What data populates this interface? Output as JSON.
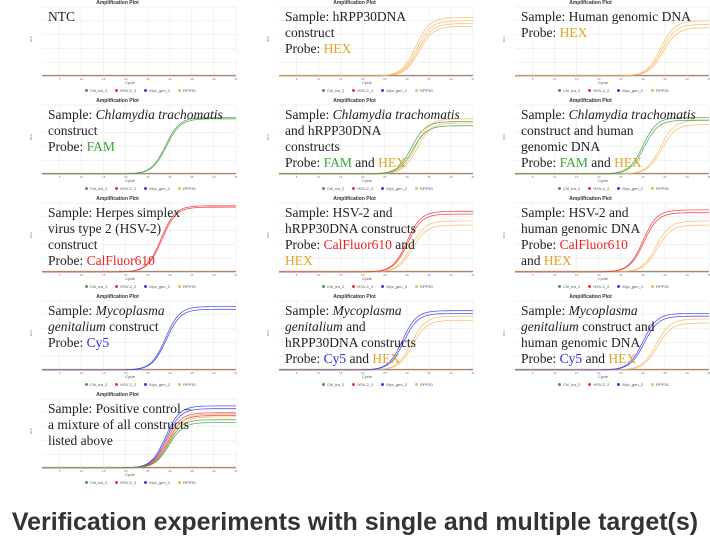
{
  "colors": {
    "FAM": "#3aa43a",
    "HEX": "#e0a424",
    "CalFluor610": "#ee2222",
    "Cy5": "#2a2ae6",
    "green": "#44a044",
    "orange": "#f4b860",
    "red": "#f03434",
    "blue": "#3a3af0"
  },
  "footer": "Verification experiments with single and multiple target(s)",
  "chart_data": [
    {
      "type": "line",
      "title": "Amplification Plot",
      "xlabel": "Cycle",
      "ylabel": "RFU",
      "xlim": [
        1,
        45
      ],
      "ylim": [
        0,
        1
      ],
      "xticks": [
        5,
        10,
        15,
        20,
        25,
        30,
        35,
        40,
        45
      ],
      "legend": [
        "Chl_tra_2",
        "HSV-2_2",
        "Myc_gen_2",
        "RPP30"
      ],
      "legend_colors": [
        "green",
        "red",
        "blue",
        "orange"
      ],
      "label": [
        [
          {
            "t": "NTC"
          }
        ]
      ],
      "curves": []
    },
    {
      "type": "line",
      "title": "Amplification Plot",
      "xlabel": "Cycle",
      "ylabel": "RFU",
      "xlim": [
        1,
        45
      ],
      "ylim": [
        0,
        1
      ],
      "xticks": [
        5,
        10,
        15,
        20,
        25,
        30,
        35,
        40,
        45
      ],
      "legend": [
        "Chl_tra_2",
        "HSV-2_2",
        "Myc_gen_2",
        "RPP30"
      ],
      "legend_colors": [
        "green",
        "red",
        "blue",
        "orange"
      ],
      "label": [
        [
          {
            "t": "Sample: hRPP30DNA"
          }
        ],
        [
          {
            "t": "construct"
          }
        ],
        [
          {
            "t": "Probe: "
          },
          {
            "t": "HEX",
            "c": "HEX"
          }
        ]
      ],
      "curves": [
        {
          "c": "orange",
          "ct": 32,
          "p": 0.85
        },
        {
          "c": "orange",
          "ct": 32.3,
          "p": 0.8
        },
        {
          "c": "orange",
          "ct": 32.6,
          "p": 0.76
        },
        {
          "c": "orange",
          "ct": 32.8,
          "p": 0.72
        }
      ]
    },
    {
      "type": "line",
      "title": "Amplification Plot",
      "xlabel": "Cycle",
      "ylabel": "RFU",
      "xlim": [
        1,
        45
      ],
      "ylim": [
        0,
        1
      ],
      "xticks": [
        5,
        10,
        15,
        20,
        25,
        30,
        35,
        40,
        45
      ],
      "legend": [
        "Chl_tra_2",
        "HSV-2_2",
        "Myc_gen_2",
        "RPP30"
      ],
      "legend_colors": [
        "green",
        "red",
        "blue",
        "orange"
      ],
      "label": [
        [
          {
            "t": "Sample: Human genomic DNA"
          }
        ],
        [
          {
            "t": "Probe: "
          },
          {
            "t": "HEX",
            "c": "HEX"
          }
        ]
      ],
      "curves": [
        {
          "c": "orange",
          "ct": 34,
          "p": 0.8
        },
        {
          "c": "orange",
          "ct": 34.3,
          "p": 0.75
        },
        {
          "c": "orange",
          "ct": 34.6,
          "p": 0.7
        }
      ]
    },
    {
      "type": "line",
      "title": "Amplification Plot",
      "xlabel": "Cycle",
      "ylabel": "RFU",
      "xlim": [
        1,
        45
      ],
      "ylim": [
        0,
        1
      ],
      "xticks": [
        5,
        10,
        15,
        20,
        25,
        30,
        35,
        40,
        45
      ],
      "legend": [
        "Chl_tra_2",
        "HSV-2_2",
        "Myc_gen_2",
        "RPP30"
      ],
      "legend_colors": [
        "green",
        "red",
        "blue",
        "orange"
      ],
      "label": [
        [
          {
            "t": "Sample: "
          },
          {
            "t": "Chlamydia trachomatis",
            "i": true
          }
        ],
        [
          {
            "t": "construct"
          }
        ],
        [
          {
            "t": "Probe: "
          },
          {
            "t": "FAM",
            "c": "FAM"
          }
        ]
      ],
      "curves": [
        {
          "c": "green",
          "ct": 29,
          "p": 0.82
        },
        {
          "c": "green",
          "ct": 29.2,
          "p": 0.8
        }
      ]
    },
    {
      "type": "line",
      "title": "Amplification Plot",
      "xlabel": "Cycle",
      "ylabel": "RFU",
      "xlim": [
        1,
        45
      ],
      "ylim": [
        0,
        1
      ],
      "xticks": [
        5,
        10,
        15,
        20,
        25,
        30,
        35,
        40,
        45
      ],
      "legend": [
        "Chl_tra_2",
        "HSV-2_2",
        "Myc_gen_2",
        "RPP30"
      ],
      "legend_colors": [
        "green",
        "red",
        "blue",
        "orange"
      ],
      "label": [
        [
          {
            "t": "Sample: "
          },
          {
            "t": "Chlamydia trachomatis",
            "i": true
          }
        ],
        [
          {
            "t": "and hRPP30DNA"
          }
        ],
        [
          {
            "t": "constructs"
          }
        ],
        [
          {
            "t": "Probe: "
          },
          {
            "t": "FAM",
            "c": "FAM"
          },
          {
            "t": " and "
          },
          {
            "t": "HEX",
            "c": "HEX"
          }
        ]
      ],
      "curves": [
        {
          "c": "orange",
          "ct": 32,
          "p": 0.8
        },
        {
          "c": "orange",
          "ct": 32.3,
          "p": 0.74
        },
        {
          "c": "green",
          "ct": 31,
          "p": 0.76
        },
        {
          "c": "green",
          "ct": 31.3,
          "p": 0.7
        }
      ]
    },
    {
      "type": "line",
      "title": "Amplification Plot",
      "xlabel": "Cycle",
      "ylabel": "RFU",
      "xlim": [
        1,
        45
      ],
      "ylim": [
        0,
        1
      ],
      "xticks": [
        5,
        10,
        15,
        20,
        25,
        30,
        35,
        40,
        45
      ],
      "legend": [
        "Chl_tra_2",
        "HSV-2_2",
        "Myc_gen_2",
        "RPP30"
      ],
      "legend_colors": [
        "green",
        "red",
        "blue",
        "orange"
      ],
      "label": [
        [
          {
            "t": "Sample: "
          },
          {
            "t": "Chlamydia trachomatis",
            "i": true
          }
        ],
        [
          {
            "t": "construct and human"
          }
        ],
        [
          {
            "t": "genomic DNA"
          }
        ],
        [
          {
            "t": "Probe: "
          },
          {
            "t": "FAM",
            "c": "FAM"
          },
          {
            "t": " and "
          },
          {
            "t": "HEX",
            "c": "HEX"
          }
        ]
      ],
      "curves": [
        {
          "c": "orange",
          "ct": 34,
          "p": 0.78
        },
        {
          "c": "orange",
          "ct": 34.3,
          "p": 0.72
        },
        {
          "c": "green",
          "ct": 30,
          "p": 0.82
        },
        {
          "c": "green",
          "ct": 30.3,
          "p": 0.78
        }
      ]
    },
    {
      "type": "line",
      "title": "Amplification Plot",
      "xlabel": "Cycle",
      "ylabel": "RFU",
      "xlim": [
        1,
        45
      ],
      "ylim": [
        0,
        1
      ],
      "xticks": [
        5,
        10,
        15,
        20,
        25,
        30,
        35,
        40,
        45
      ],
      "legend": [
        "Chl_tra_2",
        "HSV-2_2",
        "Myc_gen_2",
        "RPP30"
      ],
      "legend_colors": [
        "green",
        "red",
        "blue",
        "orange"
      ],
      "label": [
        [
          {
            "t": "Sample: Herpes simplex"
          }
        ],
        [
          {
            "t": "virus type 2 (HSV-2)"
          }
        ],
        [
          {
            "t": "construct"
          }
        ],
        [
          {
            "t": "Probe: "
          },
          {
            "t": "CalFluor610",
            "c": "CalFluor610"
          }
        ]
      ],
      "curves": [
        {
          "c": "red",
          "ct": 28,
          "p": 0.96
        },
        {
          "c": "red",
          "ct": 28.2,
          "p": 0.94
        }
      ]
    },
    {
      "type": "line",
      "title": "Amplification Plot",
      "xlabel": "Cycle",
      "ylabel": "RFU",
      "xlim": [
        1,
        45
      ],
      "ylim": [
        0,
        1
      ],
      "xticks": [
        5,
        10,
        15,
        20,
        25,
        30,
        35,
        40,
        45
      ],
      "legend": [
        "Chl_tra_2",
        "HSV-2_2",
        "Myc_gen_2",
        "RPP30"
      ],
      "legend_colors": [
        "green",
        "red",
        "blue",
        "orange"
      ],
      "label": [
        [
          {
            "t": "Sample: HSV-2 and"
          }
        ],
        [
          {
            "t": "hRPP30DNA constructs"
          }
        ],
        [
          {
            "t": "Probe: "
          },
          {
            "t": "CalFluor610",
            "c": "CalFluor610"
          },
          {
            "t": " and"
          }
        ],
        [
          {
            "t": "HEX",
            "c": "HEX"
          }
        ]
      ],
      "curves": [
        {
          "c": "orange",
          "ct": 31,
          "p": 0.74
        },
        {
          "c": "orange",
          "ct": 31.3,
          "p": 0.68
        },
        {
          "c": "red",
          "ct": 30,
          "p": 0.88
        },
        {
          "c": "red",
          "ct": 30.2,
          "p": 0.84
        }
      ]
    },
    {
      "type": "line",
      "title": "Amplification Plot",
      "xlabel": "Cycle",
      "ylabel": "RFU",
      "xlim": [
        1,
        45
      ],
      "ylim": [
        0,
        1
      ],
      "xticks": [
        5,
        10,
        15,
        20,
        25,
        30,
        35,
        40,
        45
      ],
      "legend": [
        "Chl_tra_2",
        "HSV-2_2",
        "Myc_gen_2",
        "RPP30"
      ],
      "legend_colors": [
        "green",
        "red",
        "blue",
        "orange"
      ],
      "label": [
        [
          {
            "t": "Sample: HSV-2 and"
          }
        ],
        [
          {
            "t": "human genomic DNA"
          }
        ],
        [
          {
            "t": "Probe: "
          },
          {
            "t": "CalFluor610",
            "c": "CalFluor610"
          }
        ],
        [
          {
            "t": "and "
          },
          {
            "t": "HEX",
            "c": "HEX"
          }
        ]
      ],
      "curves": [
        {
          "c": "orange",
          "ct": 33,
          "p": 0.74
        },
        {
          "c": "orange",
          "ct": 33.3,
          "p": 0.68
        },
        {
          "c": "red",
          "ct": 30,
          "p": 0.9
        },
        {
          "c": "red",
          "ct": 30.2,
          "p": 0.86
        }
      ]
    },
    {
      "type": "line",
      "title": "Amplification Plot",
      "xlabel": "Cycle",
      "ylabel": "RFU",
      "xlim": [
        1,
        45
      ],
      "ylim": [
        0,
        1
      ],
      "xticks": [
        5,
        10,
        15,
        20,
        25,
        30,
        35,
        40,
        45
      ],
      "legend": [
        "Chl_tra_2",
        "HSV-2_2",
        "Myc_gen_2",
        "RPP30"
      ],
      "legend_colors": [
        "green",
        "red",
        "blue",
        "orange"
      ],
      "label": [
        [
          {
            "t": "Sample: "
          },
          {
            "t": "Mycoplasma",
            "i": true
          }
        ],
        [
          {
            "t": "genitalium",
            "i": true
          },
          {
            "t": " construct"
          }
        ],
        [
          {
            "t": "Probe: "
          },
          {
            "t": "Cy5",
            "c": "Cy5"
          }
        ]
      ],
      "curves": [
        {
          "c": "blue",
          "ct": 29,
          "p": 0.92
        },
        {
          "c": "blue",
          "ct": 29.2,
          "p": 0.88
        }
      ]
    },
    {
      "type": "line",
      "title": "Amplification Plot",
      "xlabel": "Cycle",
      "ylabel": "RFU",
      "xlim": [
        1,
        45
      ],
      "ylim": [
        0,
        1
      ],
      "xticks": [
        5,
        10,
        15,
        20,
        25,
        30,
        35,
        40,
        45
      ],
      "legend": [
        "Chl_tra_2",
        "HSV-2_2",
        "Myc_gen_2",
        "RPP30"
      ],
      "legend_colors": [
        "green",
        "red",
        "blue",
        "orange"
      ],
      "label": [
        [
          {
            "t": "Sample: "
          },
          {
            "t": "Mycoplasma",
            "i": true
          }
        ],
        [
          {
            "t": "genitalium",
            "i": true
          },
          {
            "t": " and"
          }
        ],
        [
          {
            "t": "hRPP30DNA constructs"
          }
        ],
        [
          {
            "t": "Probe: "
          },
          {
            "t": "Cy5",
            "c": "Cy5"
          },
          {
            "t": " and "
          },
          {
            "t": "HEX",
            "c": "HEX"
          }
        ]
      ],
      "curves": [
        {
          "c": "orange",
          "ct": 31,
          "p": 0.78
        },
        {
          "c": "orange",
          "ct": 31.3,
          "p": 0.72
        },
        {
          "c": "blue",
          "ct": 29,
          "p": 0.86
        },
        {
          "c": "blue",
          "ct": 29.3,
          "p": 0.82
        }
      ]
    },
    {
      "type": "line",
      "title": "Amplification Plot",
      "xlabel": "Cycle",
      "ylabel": "RFU",
      "xlim": [
        1,
        45
      ],
      "ylim": [
        0,
        1
      ],
      "xticks": [
        5,
        10,
        15,
        20,
        25,
        30,
        35,
        40,
        45
      ],
      "legend": [
        "Chl_tra_2",
        "HSV-2_2",
        "Myc_gen_2",
        "RPP30"
      ],
      "legend_colors": [
        "green",
        "red",
        "blue",
        "orange"
      ],
      "label": [
        [
          {
            "t": "Sample: "
          },
          {
            "t": "Mycoplasma",
            "i": true
          }
        ],
        [
          {
            "t": "genitalium",
            "i": true
          },
          {
            "t": " construct and"
          }
        ],
        [
          {
            "t": "human genomic DNA"
          }
        ],
        [
          {
            "t": "Probe: "
          },
          {
            "t": "Cy5",
            "c": "Cy5"
          },
          {
            "t": " and "
          },
          {
            "t": "HEX",
            "c": "HEX"
          }
        ]
      ],
      "curves": [
        {
          "c": "orange",
          "ct": 33,
          "p": 0.74
        },
        {
          "c": "orange",
          "ct": 33.3,
          "p": 0.68
        },
        {
          "c": "blue",
          "ct": 30,
          "p": 0.82
        },
        {
          "c": "blue",
          "ct": 30.3,
          "p": 0.78
        }
      ]
    },
    {
      "type": "line",
      "title": "Amplification Plot",
      "xlabel": "Cycle",
      "ylabel": "RFU",
      "xlim": [
        1,
        45
      ],
      "ylim": [
        0,
        1
      ],
      "xticks": [
        5,
        10,
        15,
        20,
        25,
        30,
        35,
        40,
        45
      ],
      "legend": [
        "Chl_tra_2",
        "HSV-2_2",
        "Myc_gen_2",
        "RPP30"
      ],
      "legend_colors": [
        "green",
        "red",
        "blue",
        "orange"
      ],
      "label": [
        [
          {
            "t": "Sample: Positive control –"
          }
        ],
        [
          {
            "t": "a mixture of all constructs"
          }
        ],
        [
          {
            "t": "listed above"
          }
        ]
      ],
      "curves": [
        {
          "c": "blue",
          "ct": 29,
          "p": 0.9
        },
        {
          "c": "blue",
          "ct": 29.2,
          "p": 0.86
        },
        {
          "c": "red",
          "ct": 29.3,
          "p": 0.8
        },
        {
          "c": "red",
          "ct": 29.5,
          "p": 0.76
        },
        {
          "c": "orange",
          "ct": 29.8,
          "p": 0.78
        },
        {
          "c": "orange",
          "ct": 30,
          "p": 0.74
        },
        {
          "c": "green",
          "ct": 29.6,
          "p": 0.7
        },
        {
          "c": "green",
          "ct": 29.8,
          "p": 0.66
        }
      ]
    }
  ]
}
